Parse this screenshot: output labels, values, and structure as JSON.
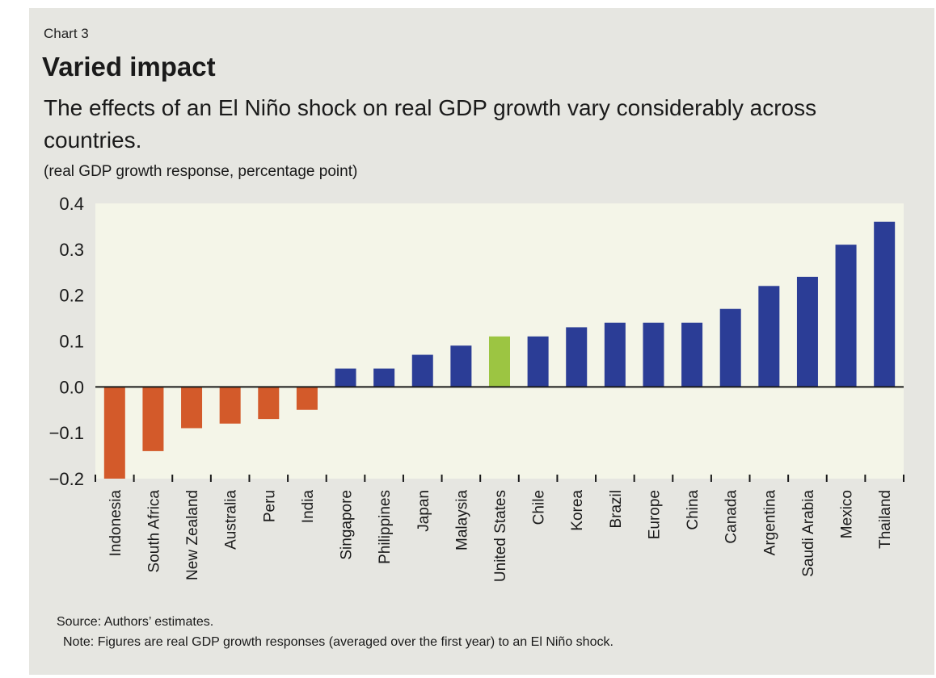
{
  "header": {
    "chart_label": "Chart 3",
    "title": "Varied impact",
    "subtitle": "The effects of an El Niño shock on real GDP growth vary considerably across countries.",
    "unit_label": "(real GDP growth response, percentage point)"
  },
  "footer": {
    "source": "Source: Authors’ estimates.",
    "note": "Note: Figures are real GDP growth responses (averaged over the first year) to an El Niño shock."
  },
  "colors": {
    "negative": "#d35a2a",
    "positive": "#2b3d96",
    "highlight": "#9cc542",
    "plot_background": "#f4f5e8",
    "zero_line": "#1a1a1a"
  },
  "chart_data": {
    "type": "bar",
    "title": "Varied impact",
    "xlabel": "",
    "ylabel": "(real GDP growth response, percentage point)",
    "ylim": [
      -0.2,
      0.4
    ],
    "yticks": [
      "0.4",
      "0.3",
      "0.2",
      "0.1",
      "0.0",
      "-0.1",
      "-0.2"
    ],
    "grid": false,
    "categories": [
      "Indonesia",
      "South Africa",
      "New Zealand",
      "Australia",
      "Peru",
      "India",
      "Singapore",
      "Philippines",
      "Japan",
      "Malaysia",
      "United States",
      "Chile",
      "Korea",
      "Brazil",
      "Europe",
      "China",
      "Canada",
      "Argentina",
      "Saudi Arabia",
      "Mexico",
      "Thailand"
    ],
    "values": [
      -0.2,
      -0.14,
      -0.09,
      -0.08,
      -0.07,
      -0.05,
      0.04,
      0.04,
      0.07,
      0.09,
      0.11,
      0.11,
      0.13,
      0.14,
      0.14,
      0.14,
      0.17,
      0.22,
      0.24,
      0.31,
      0.36
    ],
    "highlight": "United States"
  }
}
